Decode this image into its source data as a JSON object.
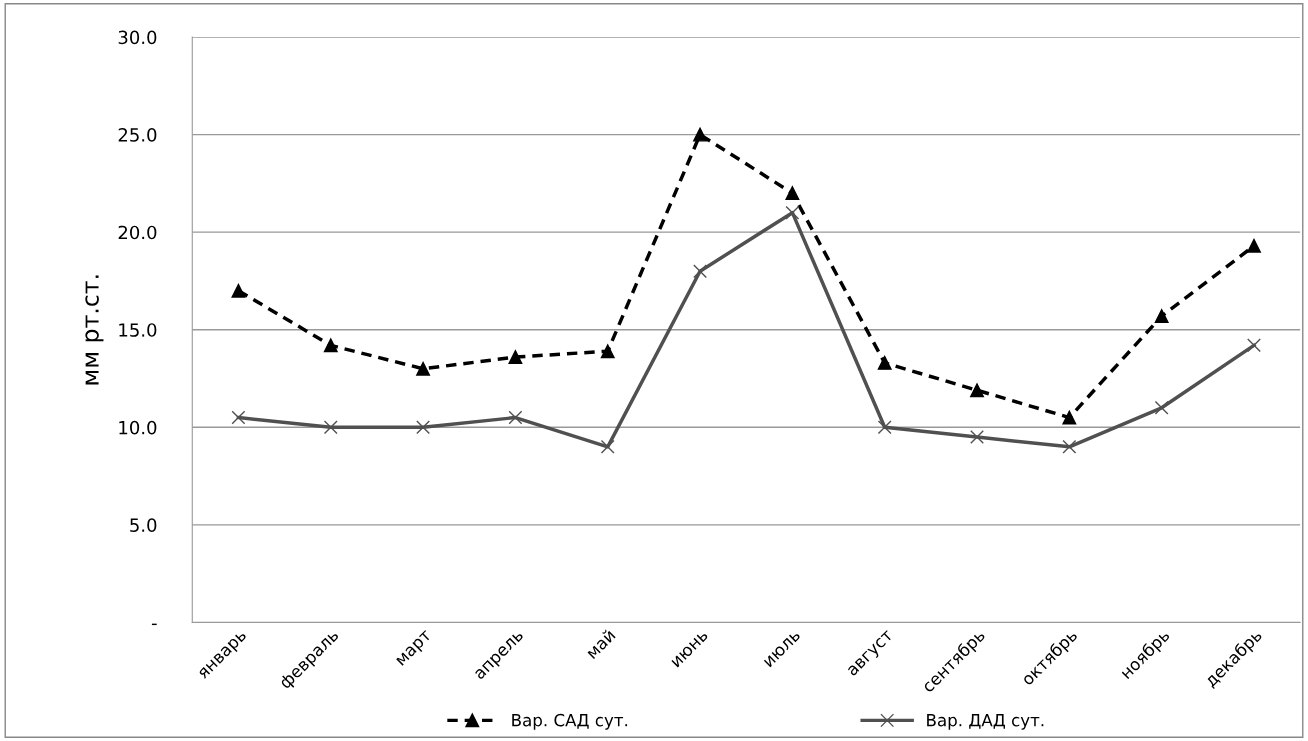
{
  "chart_data": {
    "type": "line",
    "ylabel": "мм рт.ст.",
    "categories": [
      "январь",
      "февраль",
      "март",
      "апрель",
      "май",
      "июнь",
      "июль",
      "август",
      "сентябрь",
      "октябрь",
      "ноябрь",
      "декабрь"
    ],
    "series": [
      {
        "name": "Вар. САД сут.",
        "color": "#000000",
        "marker": "triangle",
        "line_style": "dashed",
        "values": [
          17.0,
          14.2,
          13.0,
          13.6,
          13.9,
          25.0,
          22.0,
          13.3,
          11.9,
          10.5,
          15.7,
          19.3
        ]
      },
      {
        "name": "Вар. ДАД сут.",
        "color": "#505050",
        "marker": "cross",
        "line_style": "solid",
        "values": [
          10.5,
          10.0,
          10.0,
          10.5,
          9.0,
          18.0,
          21.0,
          10.0,
          9.5,
          9.0,
          11.0,
          14.2
        ]
      }
    ],
    "ylim": [
      0,
      30
    ],
    "yticks": [
      {
        "value": 0,
        "label": "-"
      },
      {
        "value": 5,
        "label": "5.0"
      },
      {
        "value": 10,
        "label": "10.0"
      },
      {
        "value": 15,
        "label": "15.0"
      },
      {
        "value": 20,
        "label": "20.0"
      },
      {
        "value": 25,
        "label": "25.0"
      },
      {
        "value": 30,
        "label": "30.0"
      }
    ],
    "grid": "y",
    "legend": "bottom"
  }
}
